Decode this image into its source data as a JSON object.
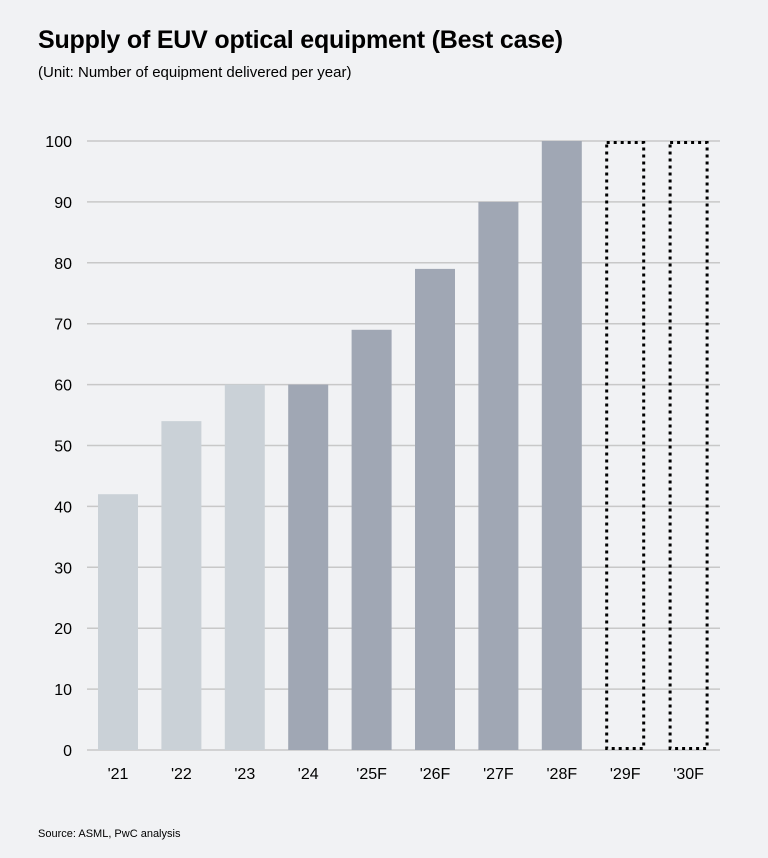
{
  "chart_data": {
    "type": "bar",
    "title": "Supply of EUV optical equipment (Best case)",
    "subtitle": "(Unit: Number of equipment delivered per year)",
    "source": "Source: ASML, PwC analysis",
    "xlabel": "",
    "ylabel": "",
    "ylim": [
      0,
      100
    ],
    "yticks": [
      0,
      10,
      20,
      30,
      40,
      50,
      60,
      70,
      80,
      90,
      100
    ],
    "grid": true,
    "categories": [
      "'21",
      "'22",
      "'23",
      "'24",
      "'25F",
      "'26F",
      "'27F",
      "'28F",
      "'29F",
      "'30F"
    ],
    "values": [
      42,
      54,
      60,
      60,
      69,
      79,
      90,
      100,
      100,
      100
    ],
    "bar_styles": [
      "light",
      "light",
      "light",
      "dark",
      "dark",
      "dark",
      "dark",
      "dark",
      "dotted-outline",
      "dotted-outline"
    ],
    "colors": {
      "light": "#cad1d7",
      "dark": "#a0a7b4",
      "outline": "#000000",
      "grid": "#c8c8c8",
      "background": "#f1f2f4"
    }
  }
}
